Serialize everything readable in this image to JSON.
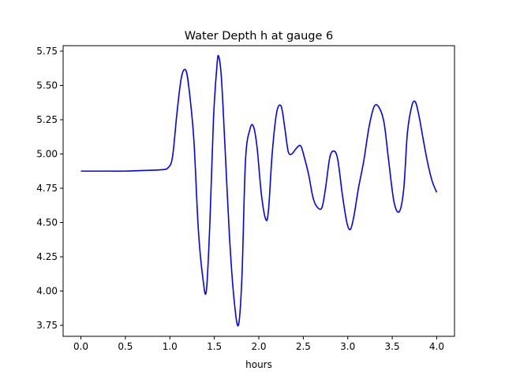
{
  "chart_data": {
    "type": "line",
    "title": "Water Depth h at gauge 6",
    "xlabel": "hours",
    "ylabel": "",
    "xlim": [
      -0.2,
      4.2
    ],
    "ylim": [
      3.67,
      5.79
    ],
    "xticks": [
      0.0,
      0.5,
      1.0,
      1.5,
      2.0,
      2.5,
      3.0,
      3.5,
      4.0
    ],
    "xtick_labels": [
      "0.0",
      "0.5",
      "1.0",
      "1.5",
      "2.0",
      "2.5",
      "3.0",
      "3.5",
      "4.0"
    ],
    "yticks": [
      3.75,
      4.0,
      4.25,
      4.5,
      4.75,
      5.0,
      5.25,
      5.5,
      5.75
    ],
    "ytick_labels": [
      "3.75",
      "4.00",
      "4.25",
      "4.50",
      "4.75",
      "5.00",
      "5.25",
      "5.50",
      "5.75"
    ],
    "grid": false,
    "legend": "none",
    "series": [
      {
        "color": "#0000ff",
        "x": [
          0.0,
          0.3,
          0.5,
          0.7,
          0.9,
          0.98,
          1.03,
          1.08,
          1.13,
          1.18,
          1.22,
          1.27,
          1.32,
          1.37,
          1.41,
          1.45,
          1.49,
          1.53,
          1.55,
          1.58,
          1.62,
          1.67,
          1.72,
          1.77,
          1.81,
          1.85,
          1.9,
          1.94,
          1.98,
          2.03,
          2.08,
          2.11,
          2.15,
          2.2,
          2.25,
          2.29,
          2.33,
          2.37,
          2.42,
          2.47,
          2.51,
          2.56,
          2.61,
          2.66,
          2.71,
          2.75,
          2.8,
          2.85,
          2.89,
          2.94,
          2.99,
          3.03,
          3.07,
          3.12,
          3.18,
          3.24,
          3.3,
          3.36,
          3.41,
          3.46,
          3.52,
          3.58,
          3.63,
          3.67,
          3.72,
          3.76,
          3.8,
          3.85,
          3.9,
          3.95,
          4.0
        ],
        "y": [
          4.875,
          4.875,
          4.875,
          4.88,
          4.885,
          4.9,
          4.98,
          5.3,
          5.56,
          5.61,
          5.45,
          5.1,
          4.45,
          4.1,
          4.0,
          4.5,
          5.25,
          5.65,
          5.71,
          5.55,
          5.05,
          4.4,
          3.95,
          3.75,
          4.1,
          4.95,
          5.18,
          5.2,
          5.05,
          4.7,
          4.52,
          4.6,
          5.0,
          5.3,
          5.35,
          5.2,
          5.02,
          5.0,
          5.04,
          5.06,
          4.98,
          4.85,
          4.68,
          4.61,
          4.61,
          4.75,
          4.98,
          5.02,
          4.95,
          4.7,
          4.5,
          4.45,
          4.55,
          4.75,
          4.95,
          5.2,
          5.35,
          5.33,
          5.22,
          4.95,
          4.65,
          4.58,
          4.75,
          5.15,
          5.35,
          5.38,
          5.28,
          5.1,
          4.93,
          4.8,
          4.72
        ]
      }
    ]
  }
}
